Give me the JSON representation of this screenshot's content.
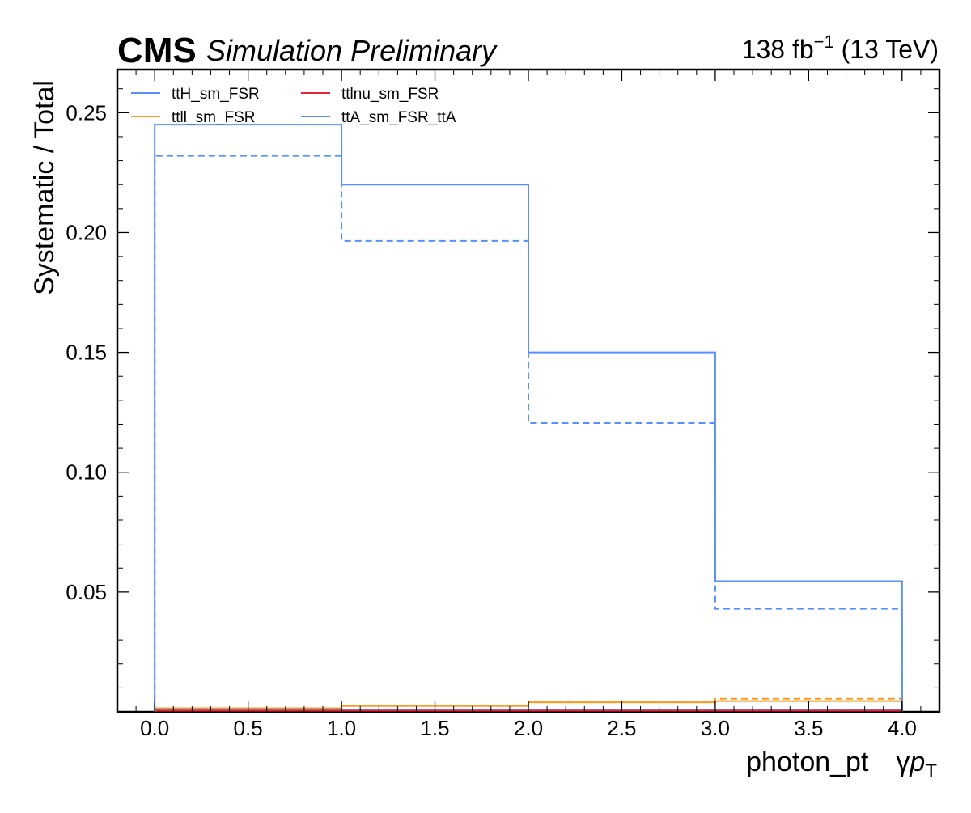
{
  "header": {
    "experiment": "CMS",
    "status": "Simulation Preliminary",
    "lumi_prefix": "138 fb",
    "lumi_exp": "−1",
    "lumi_suffix": " (13 TeV)"
  },
  "chart_data": {
    "type": "line",
    "plot_style": "step histogram (solid = up, dashed = down)",
    "xlabel_main": "photon_pt",
    "xlabel_symbol": "γ",
    "xlabel_var": "p",
    "xlabel_sub": "T",
    "ylabel": "Systematic / Total",
    "xlim": [
      -0.2,
      4.2
    ],
    "ylim": [
      0,
      0.268
    ],
    "grid": false,
    "legend_placement": "top-left",
    "legend_columns": 2,
    "x_ticks": [
      "0.0",
      "0.5",
      "1.0",
      "1.5",
      "2.0",
      "2.5",
      "3.0",
      "3.5",
      "4.0"
    ],
    "x_tick_values": [
      0.0,
      0.5,
      1.0,
      1.5,
      2.0,
      2.5,
      3.0,
      3.5,
      4.0
    ],
    "y_ticks": [
      "0.05",
      "0.10",
      "0.15",
      "0.20",
      "0.25"
    ],
    "y_tick_values": [
      0.05,
      0.1,
      0.15,
      0.2,
      0.25
    ],
    "bin_edges": [
      0,
      1,
      2,
      3,
      4
    ],
    "series": [
      {
        "name": "ttH_sm_FSR",
        "color": "#5790fc",
        "up": [
          0.001,
          0.001,
          0.001,
          0.001
        ],
        "down": [
          0.001,
          0.001,
          0.001,
          0.001
        ]
      },
      {
        "name": "ttll_sm_FSR",
        "color": "#f89c20",
        "up": [
          0.0015,
          0.0025,
          0.004,
          0.0045
        ],
        "down": [
          0.0015,
          0.0025,
          0.004,
          0.0055
        ]
      },
      {
        "name": "ttlnu_sm_FSR",
        "color": "#e42536",
        "up": [
          0.0005,
          0.0005,
          0.0005,
          0.0005
        ],
        "down": [
          0.0005,
          0.0005,
          0.0005,
          0.0005
        ]
      },
      {
        "name": "ttA_sm_FSR_ttA",
        "color": "#5790fc",
        "up": [
          0.245,
          0.22,
          0.15,
          0.0545
        ],
        "down": [
          0.232,
          0.1965,
          0.1205,
          0.043
        ]
      }
    ]
  }
}
